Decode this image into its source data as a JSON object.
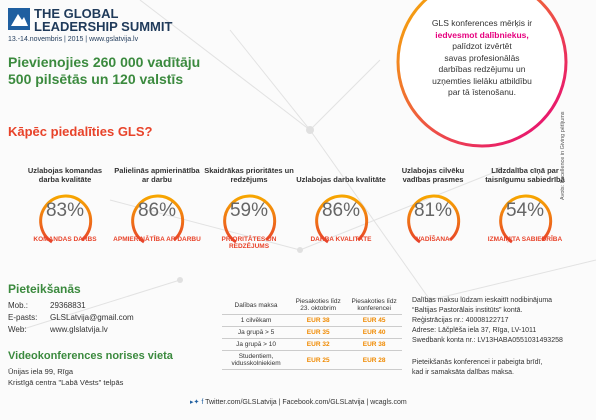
{
  "header": {
    "logo_line1": "THE GLOBAL",
    "logo_line2": "LEADERSHIP SUMMIT",
    "date_line": "13.-14.novembris | 2015 | www.gslatvija.lv"
  },
  "headline": [
    "Pievienojies 260 000 vadītāju",
    "500 pilsētās un 120 valstīs"
  ],
  "callout": {
    "line1": "GLS konferences mērķis ir",
    "highlight": "iedvesmot dalībniekus,",
    "rest": [
      "palīdzot izvērtēt",
      "savas profesionālās",
      "darbības redzējumu un",
      "uzņemties lielāku atbildību",
      "par tā īstenošanu."
    ]
  },
  "why_title": "Kāpēc piedalīties GLS?",
  "stats": [
    {
      "caption": "Uzlabojas komandas darba kvalitāte",
      "percent": "83%",
      "label": "KOMANDAS DARBS"
    },
    {
      "caption": "Palielinās apmierinātība ar darbu",
      "percent": "86%",
      "label": "APMIERINĀTĪBA AR DARBU"
    },
    {
      "caption": "Skaidrākas prioritātes un redzējums",
      "percent": "59%",
      "label": "PRIORITĀTES UN REDZĒJUMS"
    },
    {
      "caption": "Uzlabojas darba kvalitāte",
      "percent": "86%",
      "label": "DARBA KVALITĀTE"
    },
    {
      "caption": "Uzlabojas cilvēku vadības prasmes",
      "percent": "81%",
      "label": "VADĪŠANA"
    },
    {
      "caption": "Līdzdalība cīņā par taisnīgumu sabiedrībā",
      "percent": "54%",
      "label": "IZMAIŅITA SABIEDRĪBA"
    }
  ],
  "source_note": "Avots: Excellence in Giving pētījums",
  "registration": {
    "title": "Pieteikšanās",
    "rows": [
      [
        "Mob.:",
        "29368831"
      ],
      [
        "E-pasts:",
        "GLSLatvija@gmail.com"
      ],
      [
        "Web:",
        "www.glslatvija.lv"
      ]
    ]
  },
  "table": {
    "header": [
      "Dalības maksa",
      "Piesakoties līdz 23. oktobrim",
      "Piesakoties līdz konferencei"
    ],
    "rows": [
      [
        "1 cilvēkam",
        "EUR 38",
        "EUR 45"
      ],
      [
        "Ja grupā > 5",
        "EUR 35",
        "EUR 40"
      ],
      [
        "Ja grupā > 10",
        "EUR 32",
        "EUR 38"
      ],
      [
        "Studentiem, vidusskolniekiem",
        "EUR 25",
        "EUR 28"
      ]
    ]
  },
  "payment": [
    "Dalības maksu lūdzam ieskaitīt nodibinājuma",
    "“Baltijas Pastorālais institūts” kontā.",
    "Reģistrācijas nr.: 40008122717",
    "Adrese: Lāčplēša iela 37, Rīga, LV-1011",
    "Swedbank konta nr.: LV13HABA0551031493258"
  ],
  "payment_note": [
    "Pieteikšanās konferencei ir pabeigta brīdī,",
    "kad ir samaksāta dalības maksa."
  ],
  "venue": {
    "title": "Videokonferences norises vieta",
    "lines": [
      "Ūnijas iela 99, Rīga",
      "Kristīgā centra \"Labā Vēsts\" telpās"
    ]
  },
  "footer": "Twitter.com/GLSLatvija | Facebook.com/GLSLatvija | wcagls.com"
}
